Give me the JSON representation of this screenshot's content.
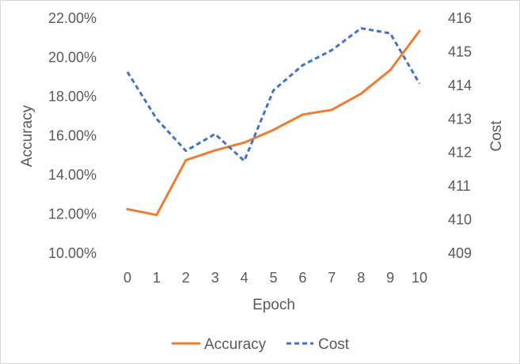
{
  "chart_data": {
    "type": "line",
    "title": "",
    "xlabel": "Epoch",
    "ylabel_left": "Accuracy",
    "ylabel_right": "Cost",
    "categories": [
      "0",
      "1",
      "2",
      "3",
      "4",
      "5",
      "6",
      "7",
      "8",
      "9",
      "10"
    ],
    "y_left": {
      "min": 0.1,
      "max": 0.22,
      "step": 0.02,
      "tick_labels": [
        "10.00%",
        "12.00%",
        "14.00%",
        "16.00%",
        "18.00%",
        "20.00%",
        "22.00%"
      ]
    },
    "y_right": {
      "min": 409,
      "max": 416,
      "step": 1,
      "tick_labels": [
        "409",
        "410",
        "411",
        "412",
        "413",
        "414",
        "415",
        "416"
      ]
    },
    "series": [
      {
        "name": "Accuracy",
        "axis": "left",
        "style": "solid",
        "color": "#ED7D31",
        "values": [
          0.1225,
          0.1195,
          0.1475,
          0.1525,
          0.1565,
          0.163,
          0.1708,
          0.1732,
          0.1815,
          0.1935,
          0.2135
        ]
      },
      {
        "name": "Cost",
        "axis": "right",
        "style": "dashed",
        "color": "#4472C4",
        "values": [
          414.4,
          413.0,
          412.05,
          412.55,
          411.75,
          413.85,
          414.6,
          415.05,
          415.7,
          415.55,
          414.05
        ]
      }
    ],
    "grid": false,
    "legend": "bottom"
  }
}
